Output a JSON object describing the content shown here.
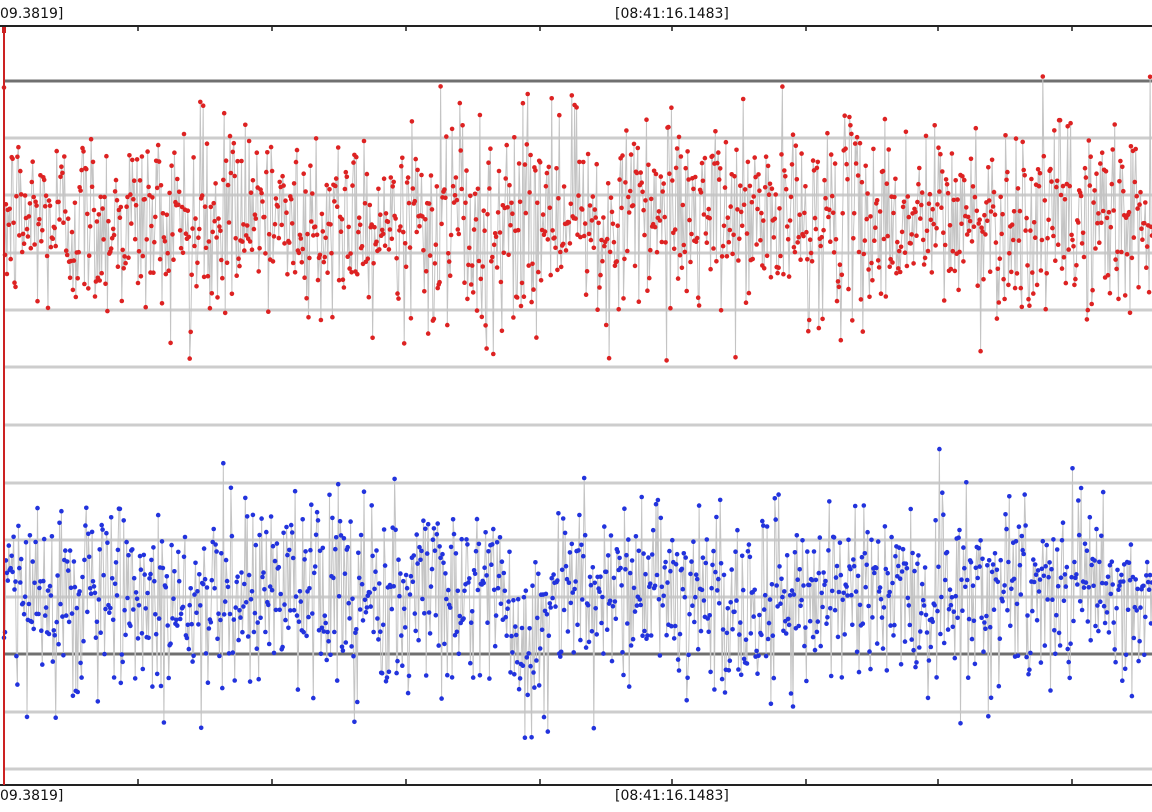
{
  "time_labels": {
    "top_left": "09.3819]",
    "top_center": "[08:41:16.1483]",
    "bottom_left": "09.3819]",
    "bottom_center": "[08:41:16.1483]"
  },
  "chart_data": {
    "type": "scatter",
    "title": "",
    "xlabel": "",
    "ylabel": "",
    "xlim": [
      0,
      1
    ],
    "ylim": [
      0,
      1
    ],
    "grid": true,
    "series": [
      {
        "color": "#dd2222",
        "line_color": "#c4c4c4",
        "point_count": 1200,
        "y_mean": 0.745,
        "y_min": 0.553,
        "y_max": 0.963,
        "dip": null
      },
      {
        "color": "#2233dd",
        "line_color": "#c4c4c4",
        "point_count": 1200,
        "y_mean": 0.25,
        "y_min": 0.06,
        "y_max": 0.461,
        "dip": {
          "x_start": 0.435,
          "x_end": 0.48,
          "y_min": 0.06
        }
      }
    ],
    "cursor": {
      "color": "#cc2222",
      "x": 0.0
    }
  }
}
